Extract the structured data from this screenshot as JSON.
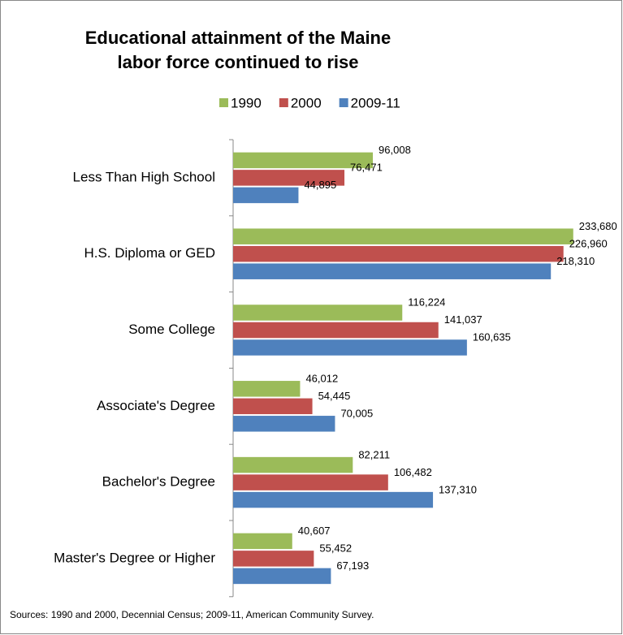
{
  "chart_data": {
    "type": "hbar",
    "title": [
      "Educational attainment of the Maine",
      "labor force continued to rise"
    ],
    "categories": [
      "Less Than High School",
      "H.S. Diploma or GED",
      "Some College",
      "Associate's Degree",
      "Bachelor's Degree",
      "Master's Degree or Higher"
    ],
    "series": [
      {
        "name": "1990",
        "color": "#9bbb59",
        "values": [
          96008,
          233680,
          116224,
          46012,
          82211,
          40607
        ],
        "value_labels": [
          "96,008",
          "233,680",
          "116,224",
          "46,012",
          "82,211",
          "40,607"
        ]
      },
      {
        "name": "2000",
        "color": "#c0504d",
        "values": [
          76471,
          226960,
          141037,
          54445,
          106482,
          55452
        ],
        "value_labels": [
          "76,471",
          "226,960",
          "141,037",
          "54,445",
          "106,482",
          "55,452"
        ]
      },
      {
        "name": "2009-11",
        "color": "#4f81bd",
        "values": [
          44895,
          218310,
          160635,
          70005,
          137310,
          67193
        ],
        "value_labels": [
          "44,895",
          "218,310",
          "160,635",
          "70,005",
          "137,310",
          "67,193"
        ]
      }
    ],
    "xlim": [
      0,
      250000
    ],
    "legend": "top",
    "source": "Sources: 1990 and 2000, Decennial Census; 2009-11, American Community Survey."
  }
}
